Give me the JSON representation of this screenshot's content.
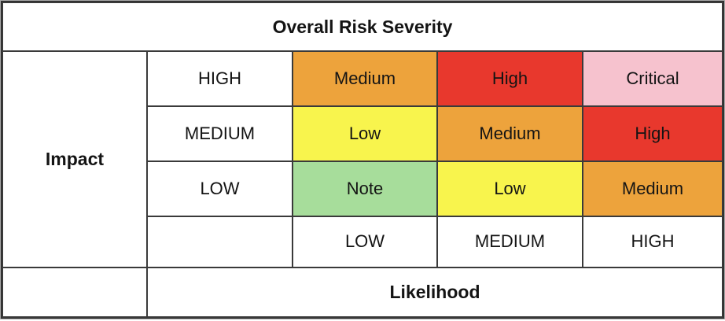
{
  "title": "Overall Risk Severity",
  "axes": {
    "impact_label": "Impact",
    "likelihood_label": "Likelihood"
  },
  "impact_levels": [
    "HIGH",
    "MEDIUM",
    "LOW"
  ],
  "likelihood_levels": [
    "LOW",
    "MEDIUM",
    "HIGH"
  ],
  "severity": {
    "grid": [
      [
        "Medium",
        "High",
        "Critical"
      ],
      [
        "Low",
        "Medium",
        "High"
      ],
      [
        "Note",
        "Low",
        "Medium"
      ]
    ],
    "grid_colors": [
      [
        "#EDA33C",
        "#E8382D",
        "#F6C2CE"
      ],
      [
        "#F8F44D",
        "#EDA33C",
        "#E8382D"
      ],
      [
        "#A7DD9B",
        "#F8F44D",
        "#EDA33C"
      ]
    ]
  },
  "colors": {
    "severity_medium": "#EDA33C",
    "severity_high": "#E8382D",
    "severity_critical": "#F6C2CE",
    "severity_low": "#F8F44D",
    "severity_note": "#A7DD9B",
    "border": "#3A3A3A",
    "text": "#141414",
    "background": "#FFFFFF"
  },
  "chart_data": {
    "type": "heatmap",
    "title": "Overall Risk Severity",
    "xlabel": "Likelihood",
    "ylabel": "Impact",
    "x_categories": [
      "LOW",
      "MEDIUM",
      "HIGH"
    ],
    "y_categories": [
      "HIGH",
      "MEDIUM",
      "LOW"
    ],
    "values": [
      [
        "Medium",
        "High",
        "Critical"
      ],
      [
        "Low",
        "Medium",
        "High"
      ],
      [
        "Note",
        "Low",
        "Medium"
      ]
    ],
    "cell_colors": [
      [
        "#EDA33C",
        "#E8382D",
        "#F6C2CE"
      ],
      [
        "#F8F44D",
        "#EDA33C",
        "#E8382D"
      ],
      [
        "#A7DD9B",
        "#F8F44D",
        "#EDA33C"
      ]
    ],
    "legend_position": "none",
    "grid": true
  }
}
